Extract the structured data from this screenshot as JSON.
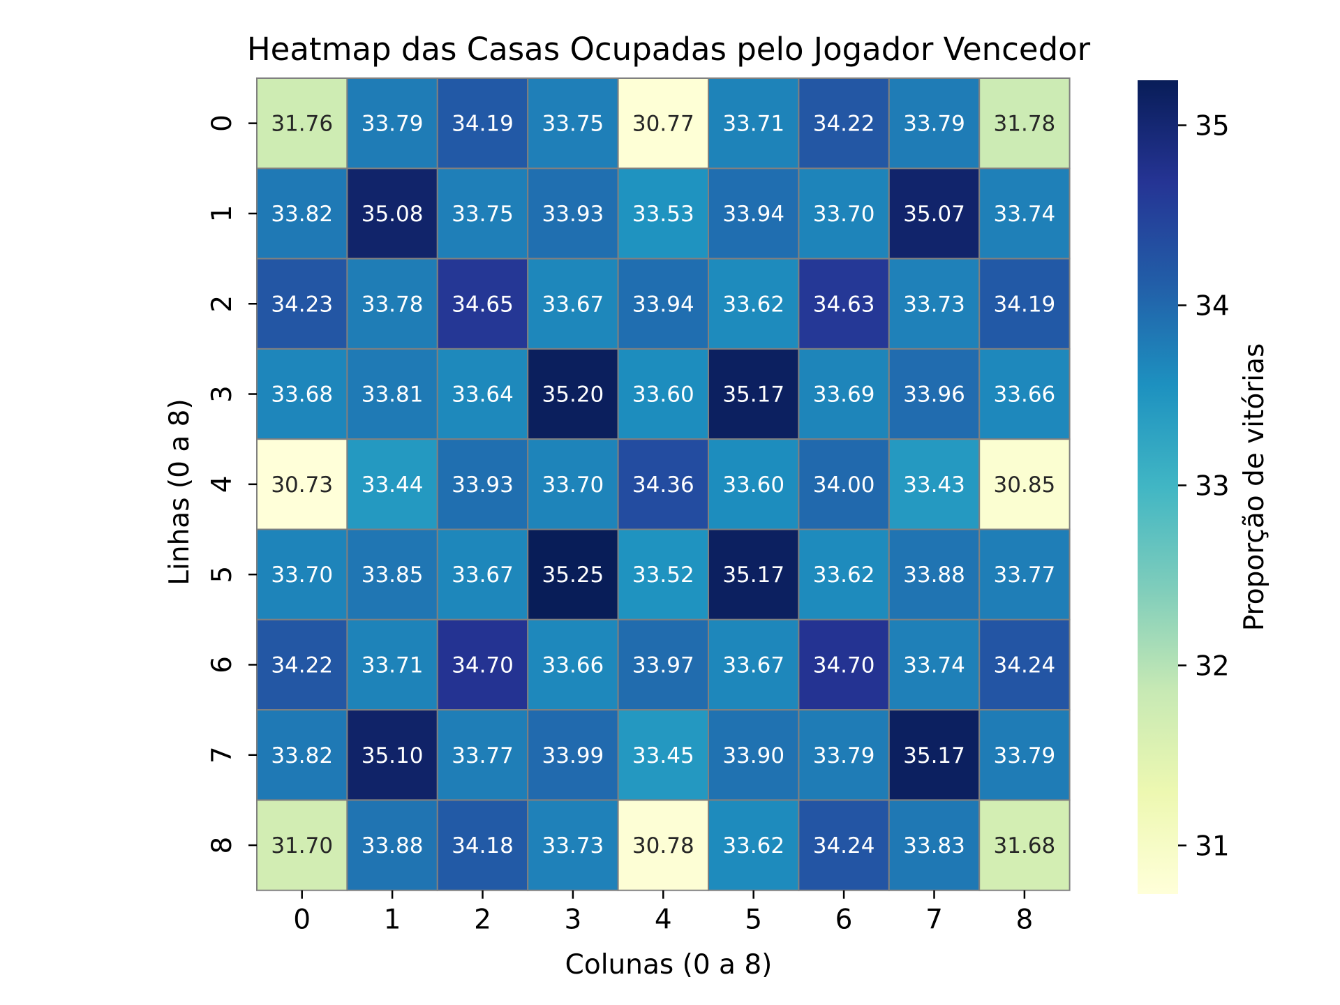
{
  "chart_data": {
    "type": "heatmap",
    "title": "Heatmap das Casas Ocupadas pelo Jogador Vencedor",
    "xlabel": "Colunas (0 a 8)",
    "ylabel": "Linhas (0 a 8)",
    "colorbar_label": "Proporção de vitórias",
    "x_categories": [
      "0",
      "1",
      "2",
      "3",
      "4",
      "5",
      "6",
      "7",
      "8"
    ],
    "y_categories": [
      "0",
      "1",
      "2",
      "3",
      "4",
      "5",
      "6",
      "7",
      "8"
    ],
    "values": [
      [
        31.76,
        33.79,
        34.19,
        33.75,
        30.77,
        33.71,
        34.22,
        33.79,
        31.78
      ],
      [
        33.82,
        35.08,
        33.75,
        33.93,
        33.53,
        33.94,
        33.7,
        35.07,
        33.74
      ],
      [
        34.23,
        33.78,
        34.65,
        33.67,
        33.94,
        33.62,
        34.63,
        33.73,
        34.19
      ],
      [
        33.68,
        33.81,
        33.64,
        35.2,
        33.6,
        35.17,
        33.69,
        33.96,
        33.66
      ],
      [
        30.73,
        33.44,
        33.93,
        33.7,
        34.36,
        33.6,
        34.0,
        33.43,
        30.85
      ],
      [
        33.7,
        33.85,
        33.67,
        35.25,
        33.52,
        35.17,
        33.62,
        33.88,
        33.77
      ],
      [
        34.22,
        33.71,
        34.7,
        33.66,
        33.97,
        33.67,
        34.7,
        33.74,
        34.24
      ],
      [
        33.82,
        35.1,
        33.77,
        33.99,
        33.45,
        33.9,
        33.79,
        35.17,
        33.79
      ],
      [
        31.7,
        33.88,
        34.18,
        33.73,
        30.78,
        33.62,
        34.24,
        33.83,
        31.68
      ]
    ],
    "value_format_decimals": 2,
    "color_range": [
      30.73,
      35.25
    ],
    "colorbar_ticks": [
      31,
      32,
      33,
      34,
      35
    ],
    "colormap": "YlGnBu",
    "colormap_stops": [
      "#ffffd9",
      "#edf8b1",
      "#c7e9b4",
      "#7fcdbb",
      "#41b6c4",
      "#1d91c0",
      "#225ea8",
      "#253494",
      "#081d58"
    ],
    "cell_border_color": "#808080",
    "grid": false
  }
}
